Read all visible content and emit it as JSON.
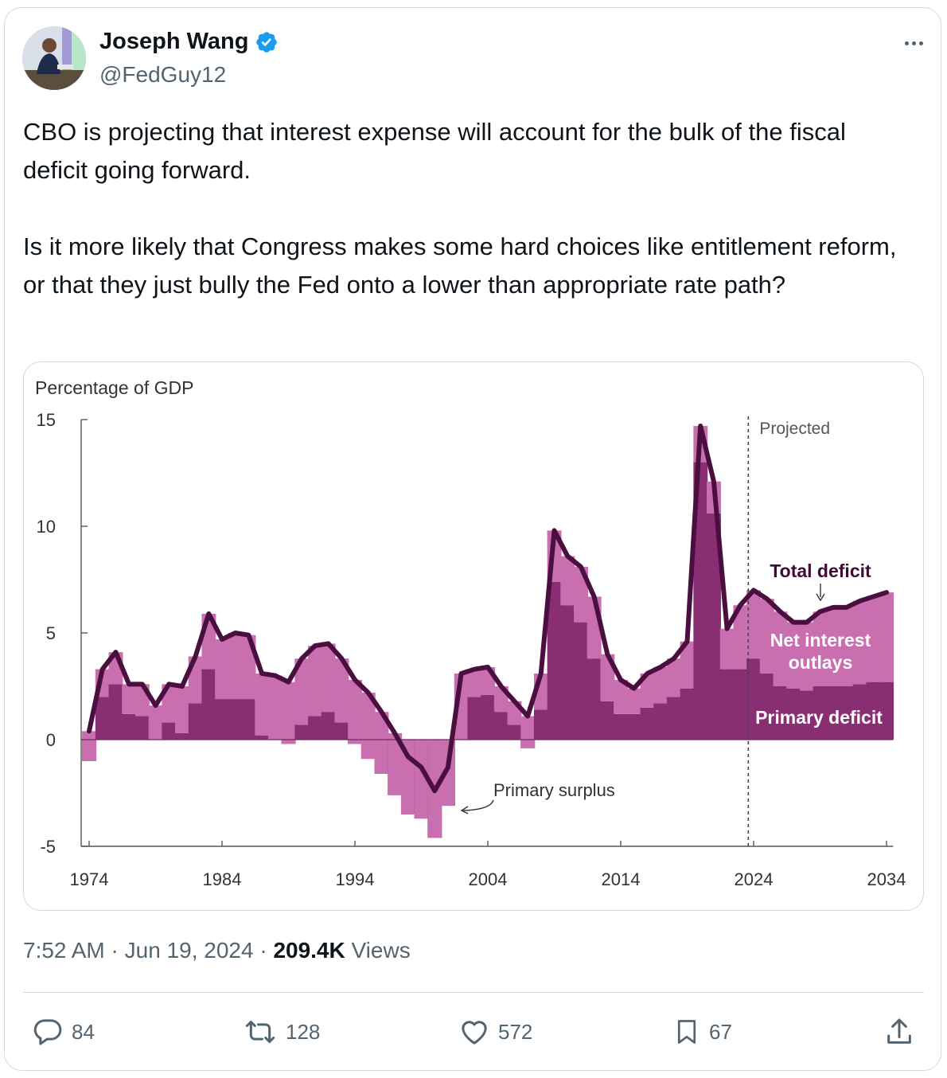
{
  "author": {
    "name": "Joseph Wang",
    "handle": "@FedGuy12"
  },
  "tweet": {
    "paragraphs": [
      "CBO is projecting that interest expense will account for the bulk of the fiscal deficit going forward.",
      "Is it more likely that Congress makes some hard choices like entitlement reform, or that they just bully the Fed onto a lower than appropriate rate path?"
    ]
  },
  "meta": {
    "time": "7:52 AM",
    "date": "Jun 19, 2024",
    "separator": "·",
    "views_count": "209.4K",
    "views_label": "Views"
  },
  "actions": {
    "replies": "84",
    "reposts": "128",
    "likes": "572",
    "bookmarks": "67"
  },
  "colors": {
    "total_line": "#4a0f3e",
    "net_interest": "#c96fb0",
    "primary": "#8a2e74",
    "verified": "#1d9bf0"
  },
  "chart_data": {
    "type": "area",
    "ylabel": "Percentage of GDP",
    "ylim": [
      -5,
      15
    ],
    "yticks": [
      "15",
      "10",
      "5",
      "0",
      "-5"
    ],
    "xticks": [
      "1974",
      "1984",
      "1994",
      "2004",
      "2014",
      "2024",
      "2034"
    ],
    "projected_label": "Projected",
    "projected_from": 2024,
    "annotations": {
      "total": "Total deficit",
      "net_interest": "Net interest outlays",
      "primary": "Primary deficit",
      "surplus": "Primary surplus"
    },
    "years": [
      1974,
      1975,
      1976,
      1977,
      1978,
      1979,
      1980,
      1981,
      1982,
      1983,
      1984,
      1985,
      1986,
      1987,
      1988,
      1989,
      1990,
      1991,
      1992,
      1993,
      1994,
      1995,
      1996,
      1997,
      1998,
      1999,
      2000,
      2001,
      2002,
      2003,
      2004,
      2005,
      2006,
      2007,
      2008,
      2009,
      2010,
      2011,
      2012,
      2013,
      2014,
      2015,
      2016,
      2017,
      2018,
      2019,
      2020,
      2021,
      2022,
      2023,
      2024,
      2025,
      2026,
      2027,
      2028,
      2029,
      2030,
      2031,
      2032,
      2033,
      2034
    ],
    "series": [
      {
        "name": "Total deficit",
        "values": [
          0.4,
          3.3,
          4.1,
          2.6,
          2.6,
          1.6,
          2.6,
          2.5,
          3.9,
          5.9,
          4.7,
          5.0,
          4.9,
          3.1,
          3.0,
          2.7,
          3.8,
          4.4,
          4.5,
          3.8,
          2.8,
          2.2,
          1.3,
          0.3,
          -0.8,
          -1.3,
          -2.4,
          -1.3,
          3.1,
          3.3,
          3.4,
          2.5,
          1.8,
          1.1,
          3.1,
          9.8,
          8.6,
          8.1,
          6.7,
          4.0,
          2.8,
          2.4,
          3.1,
          3.4,
          3.8,
          4.6,
          14.7,
          12.1,
          5.2,
          6.3,
          7.0,
          6.6,
          6.0,
          5.5,
          5.5,
          6.0,
          6.2,
          6.2,
          6.5,
          6.7,
          6.9
        ]
      },
      {
        "name": "Primary deficit",
        "values": [
          -1.0,
          2.0,
          2.6,
          1.2,
          1.1,
          0.0,
          0.8,
          0.3,
          1.7,
          3.3,
          1.9,
          1.9,
          1.9,
          0.2,
          0.0,
          -0.2,
          0.7,
          1.1,
          1.3,
          0.8,
          -0.2,
          -0.9,
          -1.6,
          -2.6,
          -3.5,
          -3.7,
          -4.6,
          -3.1,
          0.0,
          2.0,
          2.1,
          1.3,
          0.7,
          -0.4,
          1.4,
          7.4,
          6.3,
          5.5,
          3.8,
          1.8,
          1.2,
          1.2,
          1.5,
          1.7,
          2.0,
          2.4,
          13.0,
          10.6,
          3.3,
          3.3,
          3.8,
          3.1,
          2.5,
          2.4,
          2.3,
          2.5,
          2.5,
          2.5,
          2.6,
          2.7,
          2.7
        ]
      }
    ]
  }
}
